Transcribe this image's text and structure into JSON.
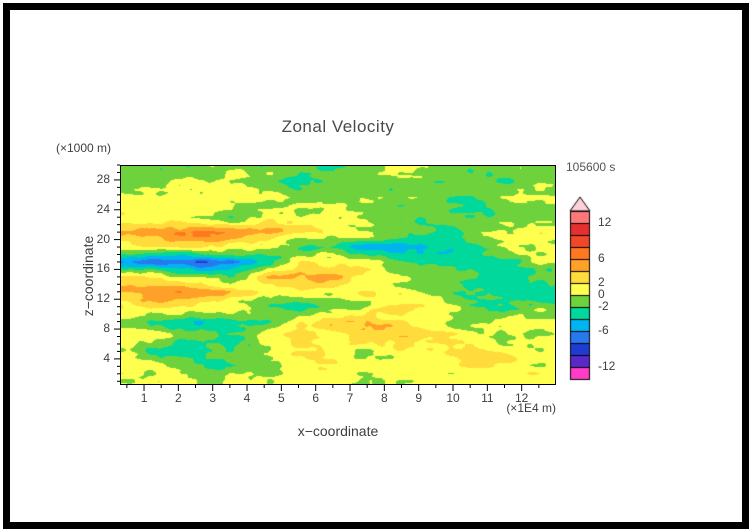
{
  "chart_data": {
    "type": "heatmap",
    "title": "Zonal Velocity",
    "time": "105600 s",
    "x": {
      "min": 0.3,
      "max": 13.0,
      "ticks": [
        1,
        2,
        3,
        4,
        5,
        6,
        7,
        8,
        9,
        10,
        11,
        12
      ],
      "minor_step": 0.5,
      "unit": "(×1E4 m)",
      "label": "x−coordinate"
    },
    "z": {
      "min": 0.5,
      "max": 30.0,
      "ticks": [
        4,
        8,
        12,
        16,
        20,
        24,
        28
      ],
      "minor_step": 1,
      "unit": "(×1000 m)",
      "label": "z−coordinate"
    },
    "levels": {
      "min": -14,
      "max": 14,
      "step": 2
    },
    "colors": [
      "#ff3cc8",
      "#5a28c8",
      "#1e3cd2",
      "#2878f0",
      "#00b4f0",
      "#00d89c",
      "#6ed23c",
      "#ffff50",
      "#ffdc3c",
      "#ffa028",
      "#ff7820",
      "#f04828",
      "#e63030",
      "#ff7878"
    ],
    "color_over": "#ffd0da",
    "colorbar_labels": [
      {
        "v": 12,
        "label": "12"
      },
      {
        "v": 6,
        "label": "6"
      },
      {
        "v": 2,
        "label": "2"
      },
      {
        "v": 0,
        "label": "0"
      },
      {
        "v": -2,
        "label": "-2"
      },
      {
        "v": -6,
        "label": "-6"
      },
      {
        "v": -12,
        "label": "-12"
      }
    ],
    "grid": {
      "x_values": [
        0.5,
        1.5,
        2.5,
        3.5,
        4.5,
        5.5,
        6.5,
        7.5,
        8.5,
        9.5,
        10.5,
        11.5,
        12.5
      ],
      "z_values": [
        29,
        27,
        25,
        23,
        21,
        19,
        17,
        15,
        13,
        11,
        9,
        7,
        5,
        3,
        1
      ],
      "values": [
        [
          -1.2,
          -1.5,
          -0.6,
          0.6,
          -1.0,
          -1.6,
          -2.2,
          -1.0,
          -0.4,
          -1.2,
          -1.6,
          -1.0,
          -0.6
        ],
        [
          -0.5,
          -1.0,
          0.6,
          1.2,
          -0.6,
          -2.6,
          -1.6,
          -0.6,
          -1.2,
          -2.2,
          -1.2,
          -1.6,
          -1.0
        ],
        [
          0.6,
          1.2,
          1.6,
          0.6,
          -0.6,
          -1.2,
          -0.5,
          0.6,
          -0.6,
          -1.6,
          -2.6,
          -1.2,
          -0.6
        ],
        [
          1.2,
          0.6,
          -0.6,
          -1.2,
          0.6,
          1.2,
          0.6,
          -0.6,
          -1.2,
          -0.6,
          -1.6,
          -2.2,
          -1.2
        ],
        [
          4.5,
          5.5,
          6.2,
          5.2,
          4.0,
          2.0,
          1.0,
          0.5,
          -1.2,
          -2.2,
          -1.2,
          0.6,
          1.0
        ],
        [
          1.2,
          2.2,
          3.0,
          2.0,
          1.0,
          -1.2,
          -3.2,
          -4.5,
          -5.5,
          -4.5,
          -3.0,
          -1.2,
          0.2
        ],
        [
          -5.5,
          -7.5,
          -8.5,
          -6.0,
          -3.0,
          0.5,
          2.2,
          1.2,
          -1.2,
          -2.2,
          -3.2,
          -2.2,
          -0.6
        ],
        [
          2.2,
          1.2,
          -1.2,
          -2.2,
          3.2,
          5.2,
          4.2,
          2.2,
          0.2,
          -1.2,
          -2.2,
          -3.2,
          -1.2
        ],
        [
          5.2,
          6.2,
          5.2,
          3.2,
          1.2,
          0.6,
          1.2,
          2.2,
          1.2,
          -0.6,
          -2.2,
          -3.2,
          -2.2
        ],
        [
          2.2,
          3.2,
          2.2,
          1.2,
          -1.2,
          -2.2,
          -1.2,
          1.2,
          3.2,
          2.2,
          -1.2,
          -2.2,
          -1.2
        ],
        [
          -1.2,
          -2.2,
          -4.2,
          -3.2,
          -2.2,
          1.2,
          3.2,
          4.2,
          2.2,
          0.2,
          -1.2,
          0.2,
          1.2
        ],
        [
          1.2,
          0.2,
          -1.2,
          -2.2,
          0.2,
          2.2,
          1.2,
          3.2,
          4.2,
          2.2,
          0.2,
          -1.2,
          0.2
        ],
        [
          0.2,
          -2.2,
          -3.2,
          -2.2,
          0.2,
          2.2,
          1.2,
          0.2,
          1.2,
          2.2,
          3.2,
          1.2,
          0.2
        ],
        [
          1.2,
          0.6,
          -1.2,
          -2.2,
          -1.2,
          0.6,
          1.6,
          1.2,
          0.6,
          1.2,
          2.2,
          1.2,
          0.6
        ],
        [
          0.6,
          1.2,
          0.6,
          0.2,
          0.6,
          1.2,
          0.6,
          0.2,
          0.6,
          1.2,
          0.6,
          0.6,
          1.2
        ]
      ]
    },
    "noise": {
      "seed": 7,
      "amp1": 1.1,
      "sx1": 30,
      "sy1": 8,
      "amp2": 0.7,
      "sx2": 10,
      "sy2": 4
    }
  }
}
